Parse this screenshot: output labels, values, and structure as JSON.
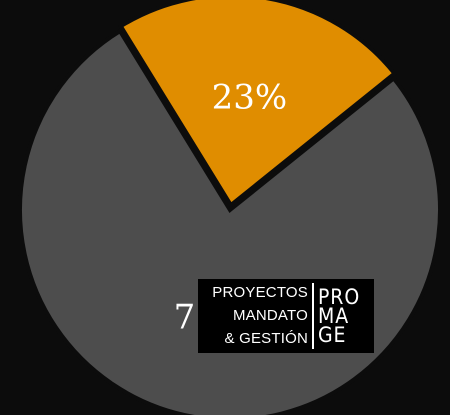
{
  "chart_data": {
    "type": "pie",
    "title": "",
    "slices": [
      {
        "label": "77%",
        "value": 77,
        "color": "#4d4d4d"
      },
      {
        "label": "23%",
        "value": 23,
        "color": "#e08d00"
      }
    ],
    "separator_color": "#0c0c0c",
    "label_color": "#ffffff",
    "exploded_slice": "23%",
    "legend": "none"
  },
  "logo": {
    "lines": [
      "PROYECTOS",
      "MANDATO",
      "& GESTIÓN"
    ],
    "mark": [
      "PRO",
      "MA",
      "GE"
    ]
  }
}
